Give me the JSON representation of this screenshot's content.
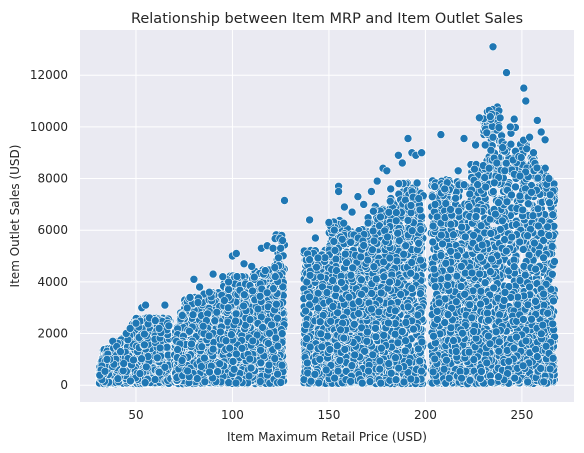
{
  "chart_data": {
    "type": "scatter",
    "title": "Relationship between Item MRP and Item Outlet Sales",
    "xlabel": "Item Maximum Retail Price (USD)",
    "ylabel": "Item Outlet Sales (USD)",
    "xlim": [
      21,
      277
    ],
    "ylim": [
      -650,
      13750
    ],
    "xticks": [
      50,
      100,
      150,
      200,
      250
    ],
    "yticks": [
      0,
      2000,
      4000,
      6000,
      8000,
      10000,
      12000
    ],
    "xtick_labels": [
      "50",
      "100",
      "150",
      "200",
      "250"
    ],
    "ytick_labels": [
      "0",
      "2000",
      "4000",
      "6000",
      "8000",
      "10000",
      "12000"
    ],
    "grid": true,
    "legend": "none",
    "colors": {
      "background": "#eaeaf2",
      "marker": "#1f77b4",
      "marker_edge": "#ffffff",
      "grid": "#ffffff"
    },
    "x_clusters": [
      [
        31,
        68
      ],
      [
        70,
        127
      ],
      [
        137,
        199
      ],
      [
        203,
        267
      ]
    ],
    "points": [
      [
        35,
        1000
      ],
      [
        38,
        1700
      ],
      [
        40,
        1500
      ],
      [
        42,
        1300
      ],
      [
        45,
        2000
      ],
      [
        47,
        2200
      ],
      [
        50,
        2400
      ],
      [
        53,
        3000
      ],
      [
        55,
        3100
      ],
      [
        57,
        2600
      ],
      [
        60,
        2500
      ],
      [
        62,
        2200
      ],
      [
        65,
        3100
      ],
      [
        67,
        2300
      ],
      [
        74,
        2700
      ],
      [
        78,
        3400
      ],
      [
        80,
        4100
      ],
      [
        83,
        3800
      ],
      [
        88,
        3600
      ],
      [
        90,
        4300
      ],
      [
        95,
        4200
      ],
      [
        98,
        4000
      ],
      [
        100,
        5000
      ],
      [
        102,
        5100
      ],
      [
        106,
        4700
      ],
      [
        110,
        4600
      ],
      [
        115,
        5300
      ],
      [
        118,
        5400
      ],
      [
        121,
        5300
      ],
      [
        125,
        5300
      ],
      [
        127,
        7150
      ],
      [
        126,
        5600
      ],
      [
        140,
        6400
      ],
      [
        143,
        5700
      ],
      [
        150,
        6300
      ],
      [
        155,
        7700
      ],
      [
        155,
        7500
      ],
      [
        158,
        6900
      ],
      [
        162,
        6700
      ],
      [
        165,
        7300
      ],
      [
        168,
        7000
      ],
      [
        172,
        7500
      ],
      [
        175,
        7900
      ],
      [
        178,
        8400
      ],
      [
        180,
        8300
      ],
      [
        182,
        7600
      ],
      [
        186,
        8900
      ],
      [
        188,
        8600
      ],
      [
        191,
        9550
      ],
      [
        193,
        9000
      ],
      [
        195,
        8900
      ],
      [
        198,
        9000
      ],
      [
        205,
        7000
      ],
      [
        208,
        9700
      ],
      [
        210,
        7600
      ],
      [
        213,
        6800
      ],
      [
        217,
        8300
      ],
      [
        220,
        9550
      ],
      [
        223,
        7400
      ],
      [
        226,
        9300
      ],
      [
        228,
        10350
      ],
      [
        230,
        8500
      ],
      [
        231,
        9300
      ],
      [
        233,
        8400
      ],
      [
        235,
        13100
      ],
      [
        237,
        8600
      ],
      [
        240,
        9200
      ],
      [
        242,
        12100
      ],
      [
        244,
        10000
      ],
      [
        246,
        10300
      ],
      [
        249,
        8100
      ],
      [
        251,
        11500
      ],
      [
        252,
        11000
      ],
      [
        254,
        9600
      ],
      [
        256,
        9000
      ],
      [
        258,
        10250
      ],
      [
        260,
        9800
      ],
      [
        262,
        9500
      ],
      [
        264,
        8000
      ],
      [
        266,
        6600
      ]
    ]
  }
}
